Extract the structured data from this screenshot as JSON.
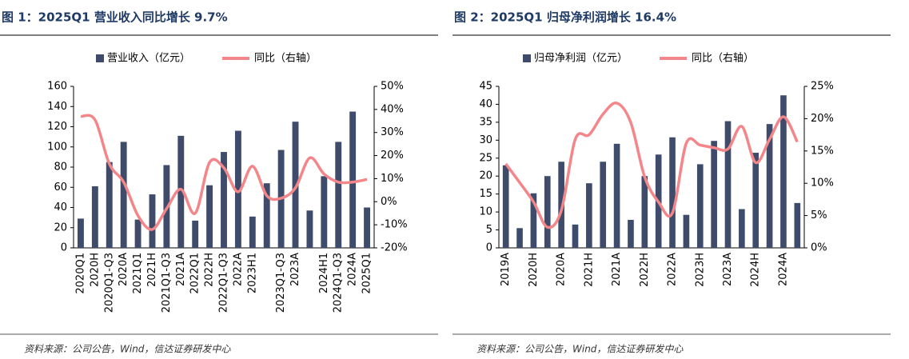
{
  "chart_data": [
    {
      "type": "combo",
      "title": "图 1：2025Q1 营业收入同比增长 9.7%",
      "source": "资料来源：公司公告，Wind，信达证券研发中心",
      "categories": [
        "2020Q1",
        "2020H",
        "2020Q1-Q3",
        "2020A",
        "2021Q1",
        "2021H",
        "2021Q1-Q3",
        "2021A",
        "2022Q1",
        "2022H",
        "2022Q1-Q3",
        "2022A",
        "2023H1",
        null,
        "2023Q1-Q3",
        "2023A",
        null,
        "2024H1",
        "2024Q1-Q3",
        "2024A",
        "2025Q1"
      ],
      "series": [
        {
          "name": "营业收入（亿元）",
          "type": "bar",
          "color": "#3e4b6b",
          "values": [
            29,
            61,
            85,
            105,
            28,
            53,
            82,
            111,
            27,
            62,
            95,
            116,
            31,
            64,
            97,
            125,
            37,
            71,
            105,
            135,
            40
          ]
        },
        {
          "name": "同比（右轴）",
          "type": "line",
          "axis": "y2",
          "color": "#f4868a",
          "values": [
            37,
            35.5,
            16.4,
            8.5,
            -6,
            -12,
            -3,
            5.4,
            -5,
            17,
            14.7,
            4.3,
            15.4,
            2.6,
            1.5,
            6,
            19,
            12,
            8.5,
            8.5,
            9.7
          ]
        }
      ],
      "ylim": [
        0,
        160
      ],
      "yticks": [
        0,
        20,
        40,
        60,
        80,
        100,
        120,
        140,
        160
      ],
      "y2lim": [
        -20,
        50
      ],
      "y2ticks": [
        {
          "value": -20,
          "label": "-20%"
        },
        {
          "value": -10,
          "label": "-10%"
        },
        {
          "value": 0,
          "label": "0%"
        },
        {
          "value": 10,
          "label": "10%"
        },
        {
          "value": 20,
          "label": "20%"
        },
        {
          "value": 30,
          "label": "30%"
        },
        {
          "value": 40,
          "label": "40%"
        },
        {
          "value": 50,
          "label": "50%"
        }
      ]
    },
    {
      "type": "combo",
      "title": "图 2：2025Q1 归母净利润增长 16.4%",
      "source": "资料来源：公司公告，Wind，信达证券研发中心",
      "categories": [
        "2019A",
        null,
        "2020H",
        null,
        "2020A",
        null,
        "2021H",
        null,
        "2021A",
        null,
        "2022H",
        null,
        "2022A",
        null,
        "2023H",
        null,
        "2023A",
        null,
        "2024H",
        null,
        "2024A",
        null
      ],
      "series": [
        {
          "name": "归母净利润（亿元）",
          "type": "bar",
          "color": "#3e4b6b",
          "values": [
            23,
            5.5,
            15.2,
            20,
            24,
            6.5,
            18,
            24,
            29,
            7.8,
            20,
            26,
            30.8,
            9.2,
            23.3,
            29.8,
            35.3,
            10.8,
            26.5,
            34.5,
            42.5,
            12.5
          ]
        },
        {
          "name": "同比（右轴）",
          "type": "line",
          "axis": "y2",
          "color": "#f4868a",
          "values": [
            13,
            10.1,
            7.1,
            3.2,
            5.8,
            16.8,
            17.5,
            20.7,
            22.4,
            19.4,
            11,
            7.1,
            5.4,
            16.2,
            15.9,
            15.5,
            15.3,
            18.8,
            13.2,
            16.8,
            20.3,
            16.4
          ]
        }
      ],
      "ylim": [
        0,
        45
      ],
      "yticks": [
        0,
        5,
        10,
        15,
        20,
        25,
        30,
        35,
        40,
        45
      ],
      "y2lim": [
        0,
        25
      ],
      "y2ticks": [
        {
          "value": 0,
          "label": "0%"
        },
        {
          "value": 5,
          "label": "5%"
        },
        {
          "value": 10,
          "label": "10%"
        },
        {
          "value": 15,
          "label": "15%"
        },
        {
          "value": 20,
          "label": "20%"
        },
        {
          "value": 25,
          "label": "25%"
        }
      ]
    }
  ]
}
